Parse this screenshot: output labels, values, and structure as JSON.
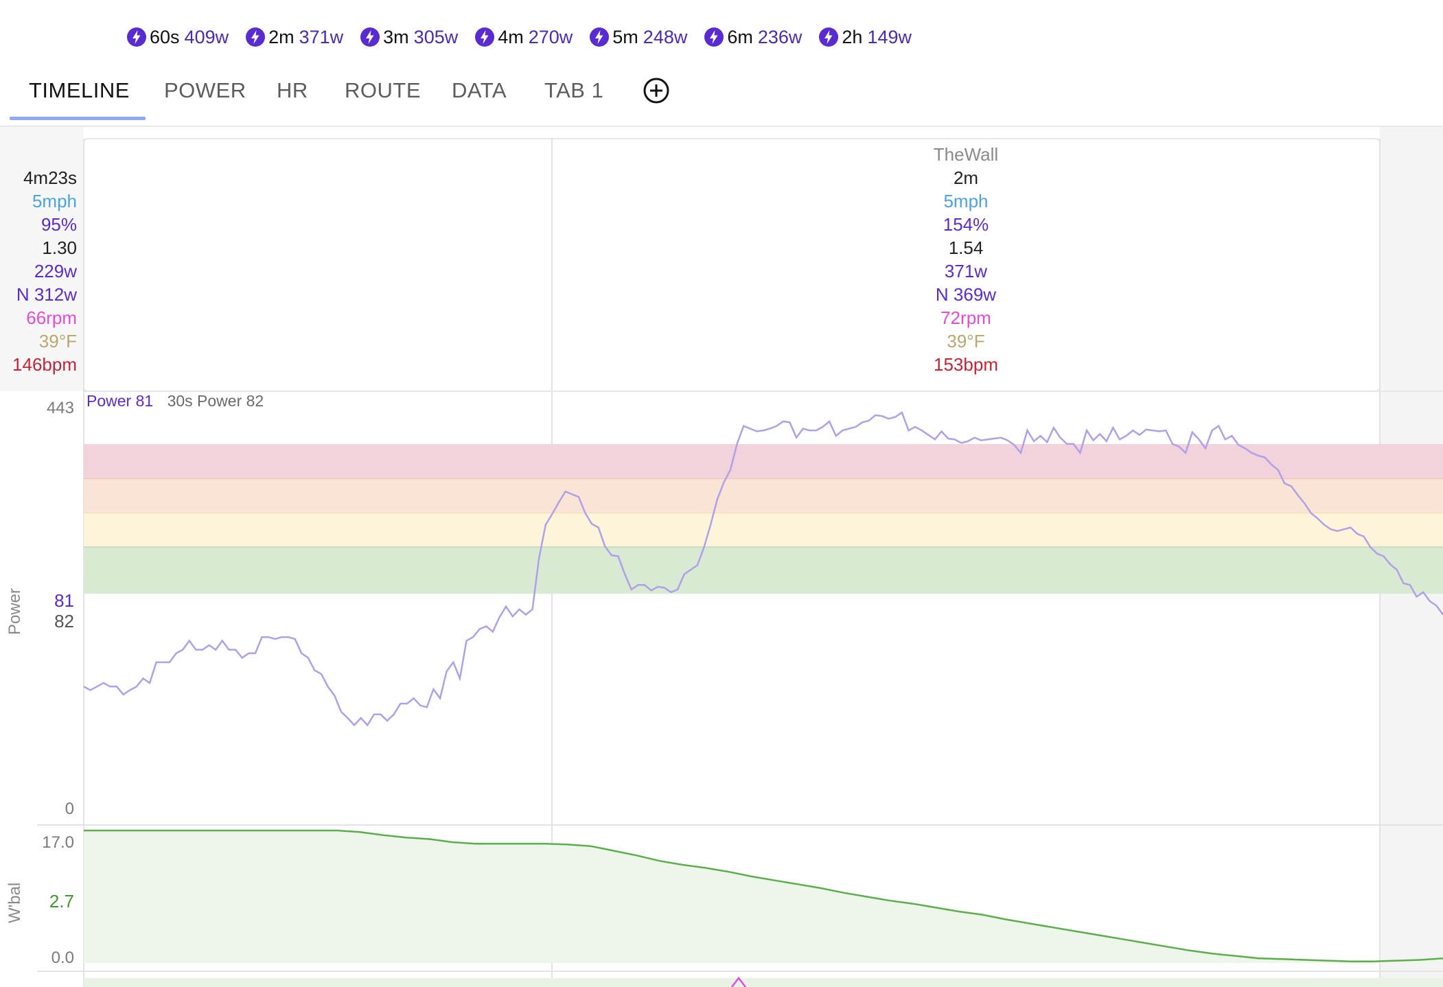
{
  "peaks": [
    {
      "duration": "60s",
      "value": "409w"
    },
    {
      "duration": "2m",
      "value": "371w"
    },
    {
      "duration": "3m",
      "value": "305w"
    },
    {
      "duration": "4m",
      "value": "270w"
    },
    {
      "duration": "5m",
      "value": "248w"
    },
    {
      "duration": "6m",
      "value": "236w"
    },
    {
      "duration": "2h",
      "value": "149w"
    }
  ],
  "tabs": [
    "TIMELINE",
    "POWER",
    "HR",
    "ROUTE",
    "DATA",
    "TAB 1"
  ],
  "active_tab": "TIMELINE",
  "left_stats": {
    "duration": "4m23s",
    "speed": "5mph",
    "pct": "95%",
    "if": "1.30",
    "watts": "229w",
    "np": "N 312w",
    "cadence": "66rpm",
    "temp": "39°F",
    "hr": "146bpm"
  },
  "lap": {
    "title": "TheWall",
    "duration": "2m",
    "speed": "5mph",
    "pct": "154%",
    "if": "1.54",
    "watts": "371w",
    "np": "N 369w",
    "cadence": "72rpm",
    "temp": "39°F",
    "hr": "153bpm"
  },
  "power_chart": {
    "axis_label": "Power",
    "ymax_label": "443",
    "ymin_label": "0",
    "legend_power": "Power 81",
    "legend_30s": "30s Power 82",
    "cursor_power": "81",
    "cursor_30s": "82"
  },
  "wbal_chart": {
    "axis_label": "W'bal",
    "top_label": "17.0",
    "cursor_label": "2.7",
    "bottom_label": "0.0"
  },
  "colors": {
    "power_line": "#b0a0e8",
    "wbal_line": "#5aaf4a",
    "zone_red": "#f2d3db",
    "zone_orange": "#f9e4d5",
    "zone_yellow": "#fdf4d9",
    "zone_green": "#d9ead3",
    "accent_tab": "#8fa8f6"
  },
  "chart_data": [
    {
      "type": "line",
      "title": "",
      "ylabel": "Power",
      "ylim": [
        0,
        443
      ],
      "series": [
        {
          "name": "Power",
          "values": [
            135,
            131,
            135,
            139,
            135,
            135,
            126,
            131,
            135,
            144,
            139,
            162,
            162,
            162,
            172,
            176,
            186,
            176,
            176,
            181,
            176,
            186,
            176,
            176,
            167,
            172,
            172,
            190,
            190,
            188,
            190,
            190,
            188,
            172,
            167,
            153,
            149,
            135,
            125,
            107,
            100,
            92,
            100,
            92,
            104,
            104,
            97,
            104,
            116,
            116,
            122,
            114,
            112,
            132,
            122,
            152,
            162,
            144,
            186,
            190,
            199,
            202,
            196,
            212,
            224,
            213,
            221,
            215,
            221,
            278,
            315,
            327,
            340,
            352,
            349,
            346,
            328,
            316,
            312,
            291,
            281,
            280,
            260,
            243,
            248,
            248,
            242,
            246,
            245,
            240,
            243,
            260,
            265,
            270,
            290,
            315,
            343,
            362,
            376,
            405,
            425,
            422,
            419,
            420,
            422,
            425,
            430,
            429,
            412,
            422,
            420,
            420,
            424,
            430,
            414,
            420,
            422,
            424,
            429,
            431,
            437,
            436,
            433,
            435,
            440,
            420,
            424,
            420,
            415,
            410,
            419,
            411,
            410,
            406,
            408,
            412,
            409,
            410,
            411,
            412,
            409,
            404,
            395,
            420,
            408,
            414,
            407,
            423,
            412,
            405,
            405,
            395,
            420,
            409,
            416,
            408,
            423,
            410,
            414,
            420,
            415,
            421,
            420,
            419,
            420,
            405,
            402,
            395,
            418,
            410,
            400,
            420,
            425,
            410,
            414,
            404,
            400,
            395,
            392,
            390,
            382,
            376,
            361,
            358,
            348,
            339,
            328,
            322,
            315,
            310,
            308,
            310,
            312,
            305,
            302,
            290,
            283,
            280,
            271,
            265,
            250,
            248,
            235,
            240,
            230,
            225,
            215
          ]
        }
      ]
    },
    {
      "type": "line",
      "title": "",
      "ylabel": "W'bal",
      "ylim": [
        0,
        17.0
      ],
      "series": [
        {
          "name": "W'bal",
          "values": [
            17.0,
            17.0,
            17.0,
            17.0,
            17.0,
            17.0,
            17.0,
            17.0,
            17.0,
            17.0,
            17.0,
            17.0,
            16.8,
            16.4,
            16.1,
            15.9,
            15.5,
            15.3,
            15.3,
            15.3,
            15.3,
            15.2,
            15.0,
            14.4,
            13.8,
            13.1,
            12.6,
            12.2,
            11.7,
            11.1,
            10.6,
            10.1,
            9.6,
            9.0,
            8.5,
            8.0,
            7.6,
            7.1,
            6.6,
            6.2,
            5.6,
            5.1,
            4.6,
            4.1,
            3.6,
            3.1,
            2.6,
            2.1,
            1.6,
            1.2,
            0.9,
            0.6,
            0.5,
            0.4,
            0.3,
            0.2,
            0.2,
            0.3,
            0.4,
            0.6
          ]
        }
      ]
    }
  ]
}
